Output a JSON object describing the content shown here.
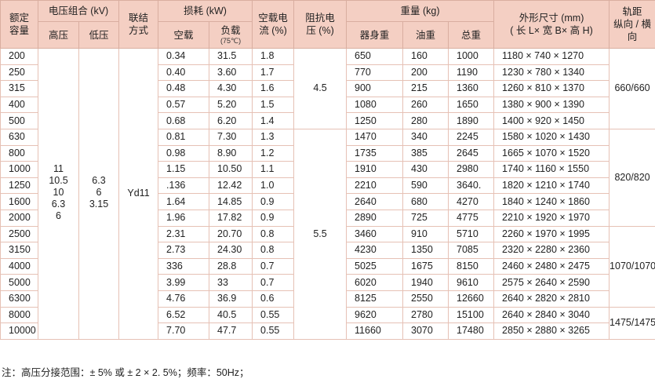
{
  "headers": {
    "capacity": [
      "额定",
      "容量"
    ],
    "voltage_combo": "电压组合 (kV)",
    "hv": "高压",
    "lv": "低压",
    "connection": [
      "联结",
      "方式"
    ],
    "loss": "损耗 (kW)",
    "no_load": "空载",
    "load": "负载",
    "load_temp": "(75℃)",
    "no_load_current": [
      "空载电",
      "流 (%)"
    ],
    "impedance": [
      "阻抗电",
      "压 (%)"
    ],
    "weight": "重量 (kg)",
    "body_weight": "器身重",
    "oil_weight": "油重",
    "total_weight": "总重",
    "dimensions": [
      "外形尺寸 (mm)",
      "( 长 L× 宽 B× 高 H)"
    ],
    "track": [
      "轨距",
      "纵向 / 横向"
    ]
  },
  "shared": {
    "hv_values": [
      "11",
      "10.5",
      "10",
      "6.3",
      "6"
    ],
    "lv_values": [
      "6.3",
      "6",
      "3.15"
    ],
    "connection": "Yd11",
    "impedance_1": "4.5",
    "impedance_2": "5.5",
    "track_1": "660/660",
    "track_2": "820/820",
    "track_3": "1070/1070",
    "track_4": "1475/1475"
  },
  "rows": [
    {
      "cap": "200",
      "nl": "0.34",
      "ld": "31.5",
      "cur": "1.8",
      "body": "650",
      "oil": "160",
      "total": "1000",
      "dim": "1180 × 740 × 1270"
    },
    {
      "cap": "250",
      "nl": "0.40",
      "ld": "3.60",
      "cur": "1.7",
      "body": "770",
      "oil": "200",
      "total": "1190",
      "dim": "1230 × 780 × 1340"
    },
    {
      "cap": "315",
      "nl": "0.48",
      "ld": "4.30",
      "cur": "1.6",
      "body": "900",
      "oil": "215",
      "total": "1360",
      "dim": "1260 × 810 × 1370"
    },
    {
      "cap": "400",
      "nl": "0.57",
      "ld": "5.20",
      "cur": "1.5",
      "body": "1080",
      "oil": "260",
      "total": "1650",
      "dim": "1380 × 900 × 1390"
    },
    {
      "cap": "500",
      "nl": "0.68",
      "ld": "6.20",
      "cur": "1.4",
      "body": "1250",
      "oil": "280",
      "total": "1890",
      "dim": "1400 × 920 × 1450"
    },
    {
      "cap": "630",
      "nl": "0.81",
      "ld": "7.30",
      "cur": "1.3",
      "body": "1470",
      "oil": "340",
      "total": "2245",
      "dim": "1580 × 1020 × 1430"
    },
    {
      "cap": "800",
      "nl": "0.98",
      "ld": "8.90",
      "cur": "1.2",
      "body": "1735",
      "oil": "385",
      "total": "2645",
      "dim": "1665 × 1070 × 1520"
    },
    {
      "cap": "1000",
      "nl": "1.15",
      "ld": "10.50",
      "cur": "1.1",
      "body": "1910",
      "oil": "430",
      "total": "2980",
      "dim": "1740 × 1160 × 1550"
    },
    {
      "cap": "1250",
      "nl": ".136",
      "ld": "12.42",
      "cur": "1.0",
      "body": "2210",
      "oil": "590",
      "total": "3640.",
      "dim": "1820 × 1210 × 1740"
    },
    {
      "cap": "1600",
      "nl": "1.64",
      "ld": "14.85",
      "cur": "0.9",
      "body": "2640",
      "oil": "680",
      "total": "4270",
      "dim": "1840 × 1240 × 1860"
    },
    {
      "cap": "2000",
      "nl": "1.96",
      "ld": "17.82",
      "cur": "0.9",
      "body": "2890",
      "oil": "725",
      "total": "4775",
      "dim": "2210 × 1920 × 1970"
    },
    {
      "cap": "2500",
      "nl": "2.31",
      "ld": "20.70",
      "cur": "0.8",
      "body": "3460",
      "oil": "910",
      "total": "5710",
      "dim": "2260 × 1970 × 1995"
    },
    {
      "cap": "3150",
      "nl": "2.73",
      "ld": "24.30",
      "cur": "0.8",
      "body": "4230",
      "oil": "1350",
      "total": "7085",
      "dim": "2320 × 2280 × 2360"
    },
    {
      "cap": "4000",
      "nl": "336",
      "ld": "28.8",
      "cur": "0.7",
      "body": "5025",
      "oil": "1675",
      "total": "8150",
      "dim": "2460 × 2480 × 2475"
    },
    {
      "cap": "5000",
      "nl": "3.99",
      "ld": "33",
      "cur": "0.7",
      "body": "6020",
      "oil": "1940",
      "total": "9610",
      "dim": "2575 × 2640 × 2590"
    },
    {
      "cap": "6300",
      "nl": "4.76",
      "ld": "36.9",
      "cur": "0.6",
      "body": "8125",
      "oil": "2550",
      "total": "12660",
      "dim": "2640 × 2820 × 2810"
    },
    {
      "cap": "8000",
      "nl": "6.52",
      "ld": "40.5",
      "cur": "0.55",
      "body": "9620",
      "oil": "2780",
      "total": "15100",
      "dim": "2640 × 2840 × 3040"
    },
    {
      "cap": "10000",
      "nl": "7.70",
      "ld": "47.7",
      "cur": "0.55",
      "body": "11660",
      "oil": "3070",
      "total": "17480",
      "dim": "2850 × 2880 × 3265"
    }
  ],
  "note": "注：高压分接范围：± 5% 或 ± 2 × 2. 5%；频率：50Hz；"
}
